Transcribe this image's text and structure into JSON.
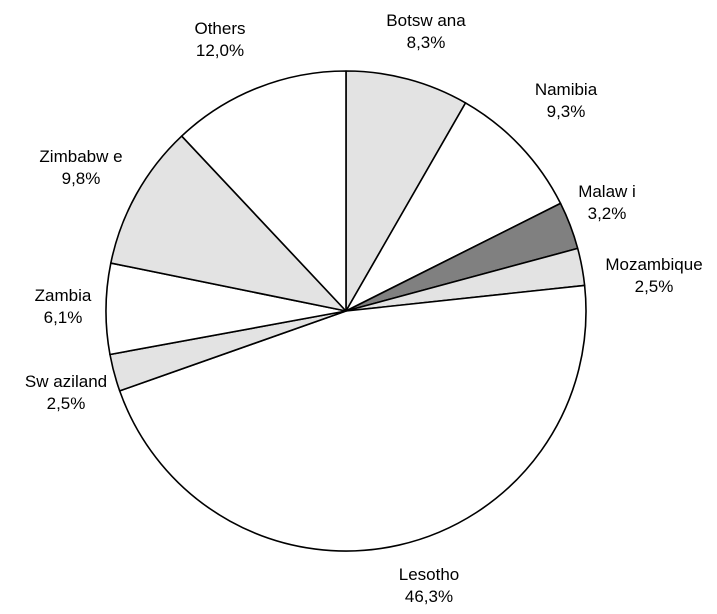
{
  "chart_data": {
    "type": "pie",
    "title": "",
    "slices": [
      {
        "label": "Botsw ana",
        "value": 8.3,
        "display": "8,3%",
        "color": "#e3e3e3"
      },
      {
        "label": "Namibia",
        "value": 9.3,
        "display": "9,3%",
        "color": "#ffffff"
      },
      {
        "label": "Malaw i",
        "value": 3.2,
        "display": "3,2%",
        "color": "#808080"
      },
      {
        "label": "Mozambique",
        "value": 2.5,
        "display": "2,5%",
        "color": "#e3e3e3"
      },
      {
        "label": "Lesotho",
        "value": 46.3,
        "display": "46,3%",
        "color": "#ffffff"
      },
      {
        "label": "Sw aziland",
        "value": 2.5,
        "display": "2,5%",
        "color": "#e3e3e3"
      },
      {
        "label": "Zambia",
        "value": 6.1,
        "display": "6,1%",
        "color": "#ffffff"
      },
      {
        "label": "Zimbabw e",
        "value": 9.8,
        "display": "9,8%",
        "color": "#e3e3e3"
      },
      {
        "label": "Others",
        "value": 12.0,
        "display": "12,0%",
        "color": "#ffffff"
      }
    ],
    "start_angle": "12 o'clock",
    "direction": "clockwise",
    "legend": "none",
    "outline_color": "#000000"
  }
}
